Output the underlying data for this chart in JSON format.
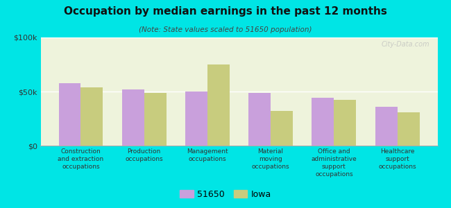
{
  "title": "Occupation by median earnings in the past 12 months",
  "subtitle": "(Note: State values scaled to 51650 population)",
  "categories": [
    "Construction\nand extraction\noccupations",
    "Production\noccupations",
    "Management\noccupations",
    "Material\nmoving\noccupations",
    "Office and\nadministrative\nsupport\noccupations",
    "Healthcare\nsupport\noccupations"
  ],
  "values_51650": [
    58000,
    52000,
    50000,
    49000,
    44000,
    36000
  ],
  "values_iowa": [
    54000,
    49000,
    75000,
    32000,
    42000,
    31000
  ],
  "color_51650": "#c9a0dc",
  "color_iowa": "#c8cc7e",
  "background_outer": "#00e5e5",
  "background_plot": "#eef3dc",
  "ylim": [
    0,
    100000
  ],
  "yticks": [
    0,
    50000,
    100000
  ],
  "ytick_labels": [
    "$0",
    "$50k",
    "$100k"
  ],
  "legend_labels": [
    "51650",
    "Iowa"
  ],
  "bar_width": 0.35,
  "watermark": "City-Data.com"
}
